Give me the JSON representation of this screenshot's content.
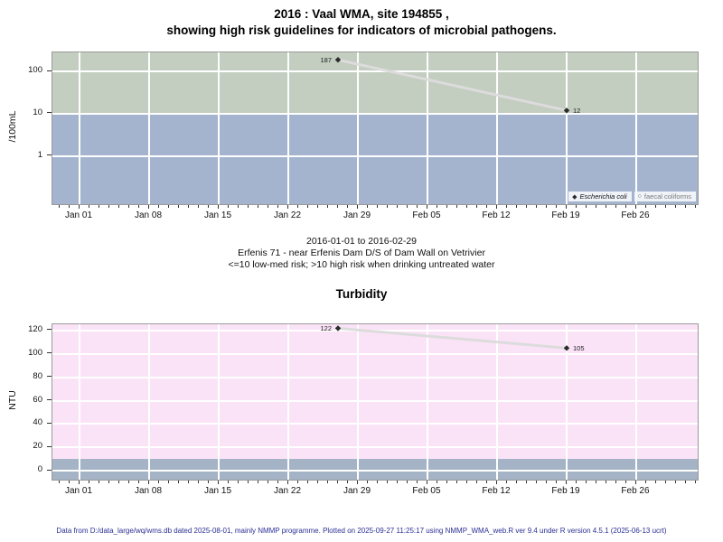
{
  "page": {
    "title_line1": "2016 : Vaal WMA, site 194855 ,",
    "title_line2": "showing high risk guidelines for indicators of microbial pathogens.",
    "caption_line1": "2016-01-01 to 2016-02-29",
    "caption_line2": "Erfenis 71 - near Erfenis Dam D/S of Dam Wall on Vetrivier",
    "caption_line3": "<=10 low-med risk; >10 high risk when drinking untreated water",
    "chart2_title": "Turbidity",
    "footer": "Data from D:/data_large/wq/wms.db dated 2025-08-01, mainly NMMP programme. Plotted on 2025-09-27 11:25:17 using NMMP_WMA_web.R ver 9.4 under R version 4.5.1 (2025-06-13 ucrt)"
  },
  "colors": {
    "high_risk_band": "#c3cdc0",
    "low_med_risk_band": "#a4b4cf",
    "turbidity_upper_band": "#fbe3f7",
    "turbidity_lower_band": "#a4b3c5",
    "gridline": "#ffffff",
    "series_line": "#dcdcdc",
    "marker": "#2b2b2b",
    "plot_border": "#9a9a9a",
    "footer_text": "#2b2f94",
    "legend_secondary_text": "#7a7a7a",
    "value_label_text": "#222222"
  },
  "chart_data": [
    {
      "type": "line",
      "title": "2016 : Vaal WMA, site 194855 , showing high risk guidelines for indicators of microbial pathogens.",
      "ylabel": "/100mL",
      "yscale": "log",
      "x_range": "2016-01-01 to 2016-02-29",
      "grid": true,
      "yticks": [
        {
          "value": 100,
          "label": "100"
        },
        {
          "value": 10,
          "label": "10"
        },
        {
          "value": 1,
          "label": "1"
        }
      ],
      "xticks": [
        {
          "day": 0,
          "label": "Jan 01"
        },
        {
          "day": 7,
          "label": "Jan 08"
        },
        {
          "day": 14,
          "label": "Jan 15"
        },
        {
          "day": 21,
          "label": "Jan 22"
        },
        {
          "day": 28,
          "label": "Jan 29"
        },
        {
          "day": 35,
          "label": "Feb 05"
        },
        {
          "day": 42,
          "label": "Feb 12"
        },
        {
          "day": 49,
          "label": "Feb 19"
        },
        {
          "day": 56,
          "label": "Feb 26"
        }
      ],
      "guideline_value": 10,
      "bands": [
        {
          "name": "high risk (>10)",
          "from": 10,
          "to": "top",
          "color": "#c3cdc0"
        },
        {
          "name": "low-med risk (<=10)",
          "from": "bottom",
          "to": 10,
          "color": "#a4b4cf"
        }
      ],
      "series": [
        {
          "name": "Escherichia coli",
          "marker": "filled-diamond",
          "points": [
            {
              "date": "2016-01-27",
              "day": 26,
              "value": 187,
              "label": "187",
              "label_side": "left"
            },
            {
              "date": "2016-02-19",
              "day": 49,
              "value": 12,
              "label": "12",
              "label_side": "right"
            }
          ]
        },
        {
          "name": "faecal coliforms",
          "marker": "open-circle",
          "points": []
        }
      ],
      "legend": [
        {
          "marker": "filled-diamond",
          "label": "Escherichia coli",
          "italic": true
        },
        {
          "marker": "open-circle",
          "label": "faecal coliforms",
          "italic": false
        }
      ],
      "legend_position": "bottom-right"
    },
    {
      "type": "line",
      "title": "Turbidity",
      "ylabel": "NTU",
      "yscale": "linear",
      "ylim": [
        0,
        120
      ],
      "x_range": "2016-01-01 to 2016-02-29",
      "grid": true,
      "yticks": [
        {
          "value": 120,
          "label": "120"
        },
        {
          "value": 100,
          "label": "100"
        },
        {
          "value": 80,
          "label": "80"
        },
        {
          "value": 60,
          "label": "60"
        },
        {
          "value": 40,
          "label": "40"
        },
        {
          "value": 20,
          "label": "20"
        },
        {
          "value": 0,
          "label": "0"
        }
      ],
      "xticks": [
        {
          "day": 0,
          "label": "Jan 01"
        },
        {
          "day": 7,
          "label": "Jan 08"
        },
        {
          "day": 14,
          "label": "Jan 15"
        },
        {
          "day": 21,
          "label": "Jan 22"
        },
        {
          "day": 28,
          "label": "Jan 29"
        },
        {
          "day": 35,
          "label": "Feb 05"
        },
        {
          "day": 42,
          "label": "Feb 12"
        },
        {
          "day": 49,
          "label": "Feb 19"
        },
        {
          "day": 56,
          "label": "Feb 26"
        }
      ],
      "guideline_value": 10,
      "bands": [
        {
          "name": "above guideline",
          "from": 10,
          "to": "top",
          "color": "#fbe3f7"
        },
        {
          "name": "low band (<=10)",
          "from": "bottom",
          "to": 10,
          "color": "#a4b3c5"
        }
      ],
      "series": [
        {
          "name": "Turbidity",
          "marker": "filled-diamond",
          "points": [
            {
              "date": "2016-01-27",
              "day": 26,
              "value": 122,
              "label": "122",
              "label_side": "left"
            },
            {
              "date": "2016-02-19",
              "day": 49,
              "value": 105,
              "label": "105",
              "label_side": "right"
            }
          ]
        }
      ]
    }
  ]
}
